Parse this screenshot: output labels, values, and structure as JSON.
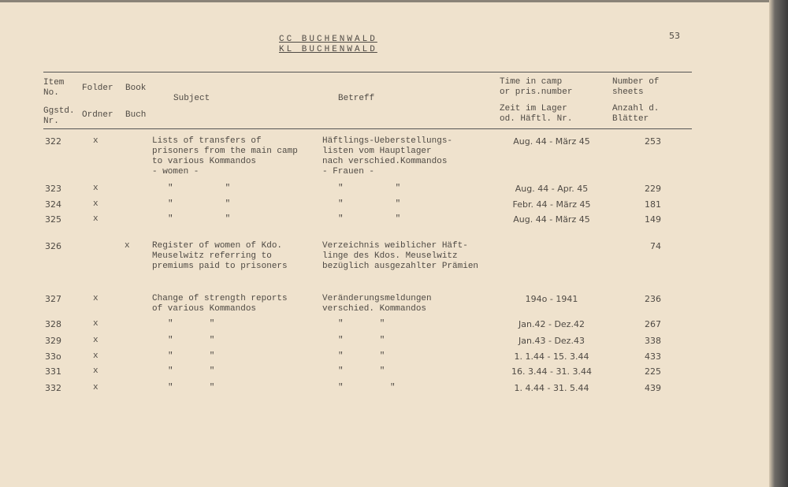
{
  "header": {
    "title_line1": "CC BUCHENWALD",
    "title_line2": "KL BUCHENWALD",
    "page_number": "53"
  },
  "columns": {
    "item_en": "Item\nNo.",
    "item_de": "Ggstd.\nNr.",
    "folder_en": "Folder",
    "folder_de": "Ordner",
    "book_en": "Book",
    "book_de": "Buch",
    "subject": "Subject",
    "betreff": "Betreff",
    "time_en": "Time in camp\nor pris.number",
    "time_de": "Zeit im Lager\nod. Häftl. Nr.",
    "sheets_en": "Number of\nsheets",
    "sheets_de": "Anzahl d.\nBlätter"
  },
  "rows": [
    {
      "item": "322",
      "folder": "x",
      "book": "",
      "subject": "Lists of transfers of\nprisoners from the main camp\nto various Kommandos\n- women -",
      "betreff": "Häftlings-Ueberstellungs-\nlisten vom Hauptlager\nnach verschied.Kommandos\n- Frauen -",
      "time": "Aug. 44 - März 45",
      "sheets": "253"
    },
    {
      "item": "323",
      "folder": "x",
      "book": "",
      "subject": "\"          \"",
      "betreff": "\"          \"",
      "time": "Aug. 44 - Apr. 45",
      "sheets": "229"
    },
    {
      "item": "324",
      "folder": "x",
      "book": "",
      "subject": "\"          \"",
      "betreff": "\"          \"",
      "time": "Febr. 44 - März 45",
      "sheets": "181"
    },
    {
      "item": "325",
      "folder": "x",
      "book": "",
      "subject": "\"          \"",
      "betreff": "\"          \"",
      "time": "Aug. 44 - März 45",
      "sheets": "149"
    },
    {
      "item": "326",
      "folder": "",
      "book": "x",
      "subject": "Register of women of Kdo.\nMeuselwitz referring to\npremiums paid to prisoners",
      "betreff": "Verzeichnis weiblicher Häft-\nlinge des Kdos. Meuselwitz\nbezüglich ausgezahlter Prämien",
      "time": "",
      "sheets": "74"
    },
    {
      "item": "327",
      "folder": "x",
      "book": "",
      "subject": "Change of strength reports\nof various Kommandos",
      "betreff": "Veränderungsmeldungen\nverschied. Kommandos",
      "time": "194o - 1941",
      "sheets": "236"
    },
    {
      "item": "328",
      "folder": "x",
      "book": "",
      "subject": "\"       \"",
      "betreff": "\"       \"",
      "time": "Jan.42 - Dez.42",
      "sheets": "267"
    },
    {
      "item": "329",
      "folder": "x",
      "book": "",
      "subject": "\"       \"",
      "betreff": "\"       \"",
      "time": "Jan.43 - Dez.43",
      "sheets": "338"
    },
    {
      "item": "33o",
      "folder": "x",
      "book": "",
      "subject": "\"       \"",
      "betreff": "\"       \"",
      "time": "1. 1.44 - 15. 3.44",
      "sheets": "433"
    },
    {
      "item": "331",
      "folder": "x",
      "book": "",
      "subject": "\"       \"",
      "betreff": "\"       \"",
      "time": "16. 3.44 - 31. 3.44",
      "sheets": "225"
    },
    {
      "item": "332",
      "folder": "x",
      "book": "",
      "subject": "\"       \"",
      "betreff": "\"         \"",
      "time": "1. 4.44 - 31. 5.44",
      "sheets": "439"
    }
  ]
}
